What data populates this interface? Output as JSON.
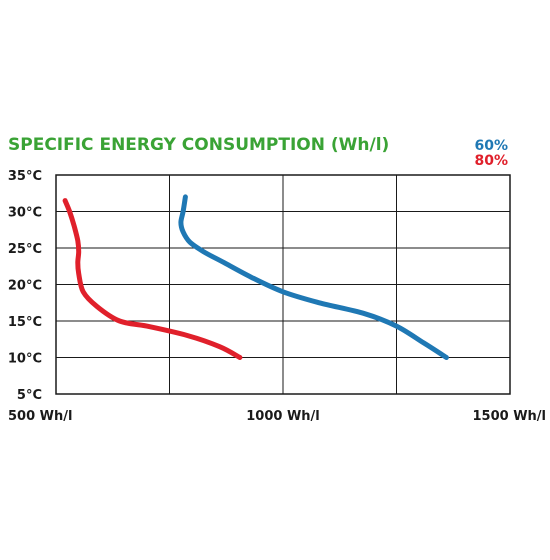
{
  "chart_data": {
    "type": "line",
    "title": "SPECIFIC ENERGY CONSUMPTION (Wh/l)",
    "x_ticks": [
      "500 Wh/l",
      "1000 Wh/l",
      "1500 Wh/l"
    ],
    "y_ticks": [
      "5°C",
      "10°C",
      "15°C",
      "20°C",
      "25°C",
      "30°C",
      "35°C"
    ],
    "xlim": [
      500,
      1500
    ],
    "ylim": [
      5,
      35
    ],
    "grid": true,
    "legend_position": "top-right",
    "series": [
      {
        "name": "60%",
        "color": "#1f78b4",
        "points": [
          [
            1360,
            10
          ],
          [
            1310,
            12
          ],
          [
            1250,
            14.3
          ],
          [
            1180,
            16
          ],
          [
            1080,
            17.5
          ],
          [
            1000,
            19
          ],
          [
            930,
            21
          ],
          [
            870,
            23
          ],
          [
            825,
            24.5
          ],
          [
            795,
            25.8
          ],
          [
            780,
            27.2
          ],
          [
            775,
            28.5
          ],
          [
            780,
            30
          ],
          [
            785,
            32
          ]
        ]
      },
      {
        "name": "80%",
        "color": "#e0202b",
        "points": [
          [
            905,
            10
          ],
          [
            860,
            11.5
          ],
          [
            790,
            13
          ],
          [
            700,
            14.3
          ],
          [
            640,
            15
          ],
          [
            590,
            17
          ],
          [
            560,
            19
          ],
          [
            550,
            21.5
          ],
          [
            548,
            23
          ],
          [
            550,
            24.5
          ],
          [
            548,
            26
          ],
          [
            540,
            28
          ],
          [
            530,
            30
          ],
          [
            520,
            31.5
          ]
        ]
      }
    ]
  }
}
